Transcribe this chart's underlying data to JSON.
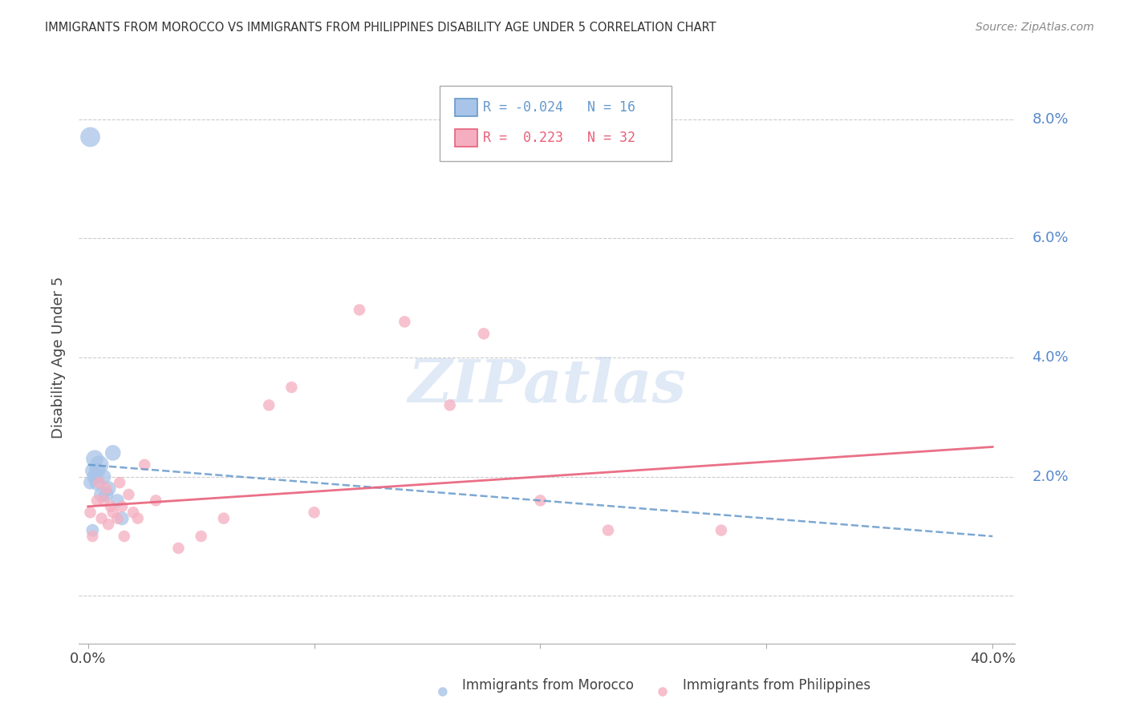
{
  "title": "IMMIGRANTS FROM MOROCCO VS IMMIGRANTS FROM PHILIPPINES DISABILITY AGE UNDER 5 CORRELATION CHART",
  "source": "Source: ZipAtlas.com",
  "ylabel": "Disability Age Under 5",
  "xlim": [
    -0.004,
    0.41
  ],
  "ylim": [
    -0.008,
    0.088
  ],
  "yticks": [
    0.0,
    0.02,
    0.04,
    0.06,
    0.08
  ],
  "ytick_labels": [
    "",
    "2.0%",
    "4.0%",
    "6.0%",
    "8.0%"
  ],
  "xticks": [
    0.0,
    0.1,
    0.2,
    0.3,
    0.4
  ],
  "morocco_R": -0.024,
  "morocco_N": 16,
  "philippines_R": 0.223,
  "philippines_N": 32,
  "morocco_color": "#a8c4e8",
  "philippines_color": "#f5aec0",
  "morocco_line_color": "#6699cc",
  "philippines_line_color": "#e8607a",
  "watermark_text": "ZIPatlas",
  "morocco_x": [
    0.001,
    0.002,
    0.003,
    0.003,
    0.004,
    0.004,
    0.005,
    0.006,
    0.007,
    0.008,
    0.009,
    0.011,
    0.013,
    0.015,
    0.001,
    0.002
  ],
  "morocco_y": [
    0.019,
    0.021,
    0.02,
    0.023,
    0.019,
    0.021,
    0.022,
    0.017,
    0.02,
    0.017,
    0.018,
    0.024,
    0.016,
    0.013,
    0.077,
    0.011
  ],
  "morocco_sizes": [
    150,
    180,
    200,
    250,
    200,
    220,
    280,
    190,
    170,
    175,
    185,
    200,
    145,
    155,
    320,
    130
  ],
  "philippines_x": [
    0.001,
    0.002,
    0.004,
    0.005,
    0.006,
    0.007,
    0.008,
    0.009,
    0.01,
    0.011,
    0.013,
    0.014,
    0.015,
    0.016,
    0.018,
    0.02,
    0.022,
    0.025,
    0.03,
    0.04,
    0.05,
    0.06,
    0.08,
    0.09,
    0.1,
    0.12,
    0.14,
    0.16,
    0.175,
    0.2,
    0.23,
    0.28
  ],
  "philippines_y": [
    0.014,
    0.01,
    0.016,
    0.019,
    0.013,
    0.016,
    0.018,
    0.012,
    0.015,
    0.014,
    0.013,
    0.019,
    0.015,
    0.01,
    0.017,
    0.014,
    0.013,
    0.022,
    0.016,
    0.008,
    0.01,
    0.013,
    0.032,
    0.035,
    0.014,
    0.048,
    0.046,
    0.032,
    0.044,
    0.016,
    0.011,
    0.011
  ],
  "philippines_sizes": [
    110,
    110,
    110,
    110,
    110,
    110,
    110,
    110,
    110,
    110,
    110,
    110,
    110,
    110,
    110,
    110,
    110,
    110,
    110,
    110,
    110,
    110,
    110,
    110,
    110,
    110,
    110,
    110,
    110,
    110,
    110,
    110
  ],
  "morocco_trend_x": [
    0.0,
    0.4
  ],
  "morocco_trend_y": [
    0.022,
    0.01
  ],
  "philippines_trend_x": [
    0.0,
    0.4
  ],
  "philippines_trend_y": [
    0.015,
    0.025
  ],
  "legend_entries": [
    {
      "label": "R = -0.024   N = 16",
      "color": "#6699cc",
      "fill": "#a8c4e8"
    },
    {
      "label": "R =  0.223   N = 32",
      "color": "#e8607a",
      "fill": "#f5aec0"
    }
  ],
  "bottom_legend": [
    "Immigrants from Morocco",
    "Immigrants from Philippines"
  ]
}
